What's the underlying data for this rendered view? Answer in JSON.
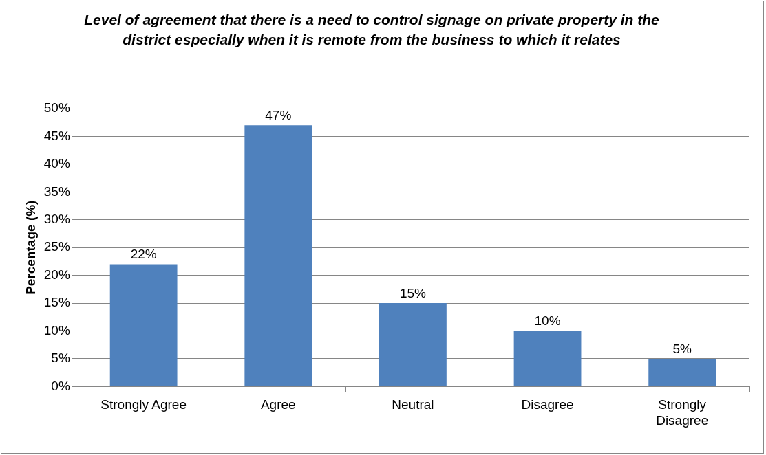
{
  "chart_data": {
    "type": "bar",
    "title": "Level of agreement that there is a need to control signage on private property in the district especially when it is remote from the business to which it relates",
    "ylabel": "Percentage (%)",
    "categories": [
      "Strongly Agree",
      "Agree",
      "Neutral",
      "Disagree",
      "Strongly Disagree"
    ],
    "values": [
      22,
      47,
      15,
      10,
      5
    ],
    "value_labels": [
      "22%",
      "47%",
      "15%",
      "10%",
      "5%"
    ],
    "color": "#4f81bd",
    "ylim": [
      0,
      50
    ],
    "yticks": [
      {
        "value": 0,
        "label": "0%"
      },
      {
        "value": 5,
        "label": "5%"
      },
      {
        "value": 10,
        "label": "10%"
      },
      {
        "value": 15,
        "label": "15%"
      },
      {
        "value": 20,
        "label": "20%"
      },
      {
        "value": 25,
        "label": "25%"
      },
      {
        "value": 30,
        "label": "30%"
      },
      {
        "value": 35,
        "label": "35%"
      },
      {
        "value": 40,
        "label": "40%"
      },
      {
        "value": 45,
        "label": "45%"
      },
      {
        "value": 50,
        "label": "50%"
      }
    ],
    "grid": "y",
    "legend": false
  }
}
